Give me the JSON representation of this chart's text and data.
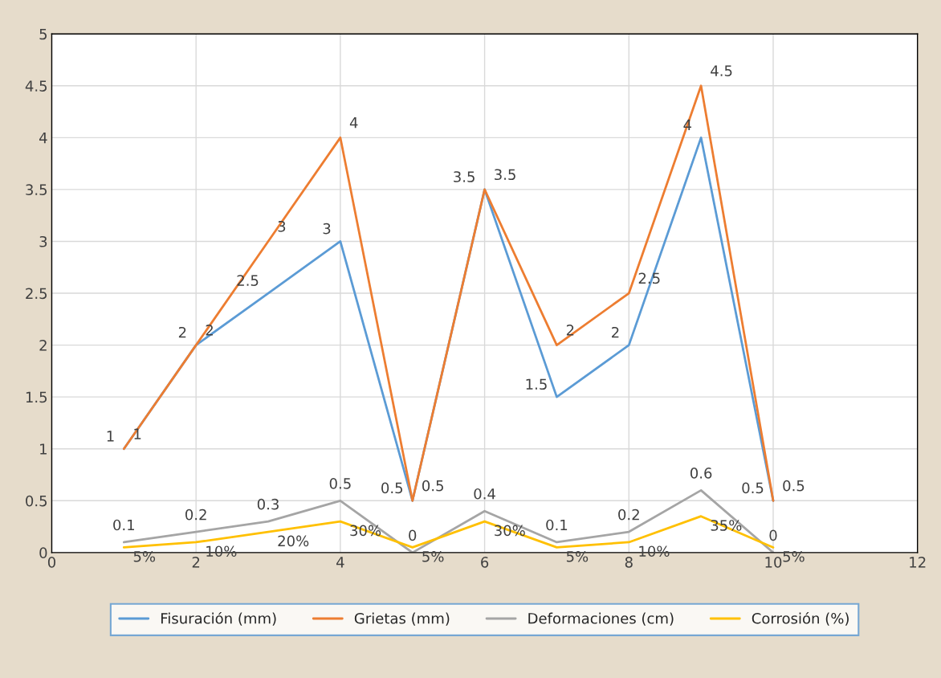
{
  "chart_data": {
    "type": "line",
    "x": [
      1,
      2,
      3,
      4,
      5,
      6,
      7,
      8,
      9,
      10
    ],
    "series": [
      {
        "name": "Fisuración (mm)",
        "color": "#5b9bd5",
        "values": [
          1,
          2,
          2.5,
          3,
          0.5,
          3.5,
          1.5,
          2,
          4,
          0.5
        ],
        "value_labels": [
          "1",
          "2",
          "2.5",
          "3",
          "0.5",
          "3.5",
          "1.5",
          "2",
          "4",
          "0.5"
        ]
      },
      {
        "name": "Grietas (mm)",
        "color": "#ed7d31",
        "values": [
          1,
          2,
          3,
          4,
          0.5,
          3.5,
          2,
          2.5,
          4.5,
          0.5
        ],
        "value_labels": [
          "1",
          "2",
          "3",
          "4",
          "0.5",
          "3.5",
          "2",
          "2.5",
          "4.5",
          "0.5"
        ]
      },
      {
        "name": "Deformaciones (cm)",
        "color": "#a5a5a5",
        "values": [
          0.1,
          0.2,
          0.3,
          0.5,
          0,
          0.4,
          0.1,
          0.2,
          0.6,
          0
        ],
        "value_labels": [
          "0.1",
          "0.2",
          "0.3",
          "0.5",
          "0",
          "0.4",
          "0.1",
          "0.2",
          "0.6",
          "0"
        ]
      },
      {
        "name": "Corrosión (%)",
        "color": "#ffc000",
        "values": [
          0.05,
          0.1,
          0.2,
          0.3,
          0.05,
          0.3,
          0.05,
          0.1,
          0.35,
          0.05
        ],
        "value_labels": [
          "5%",
          "10%",
          "20%",
          "30%",
          "5%",
          "30%",
          "5%",
          "10%",
          "35%",
          "5%"
        ]
      }
    ],
    "xlim": [
      0,
      12
    ],
    "xticks": [
      0,
      2,
      4,
      6,
      8,
      10,
      12
    ],
    "ylim": [
      0,
      5
    ],
    "yticks": [
      0,
      0.5,
      1,
      1.5,
      2,
      2.5,
      3,
      3.5,
      4,
      4.5,
      5
    ],
    "grid": true,
    "legend": "bottom",
    "marker": "none",
    "line_style": "solid"
  }
}
